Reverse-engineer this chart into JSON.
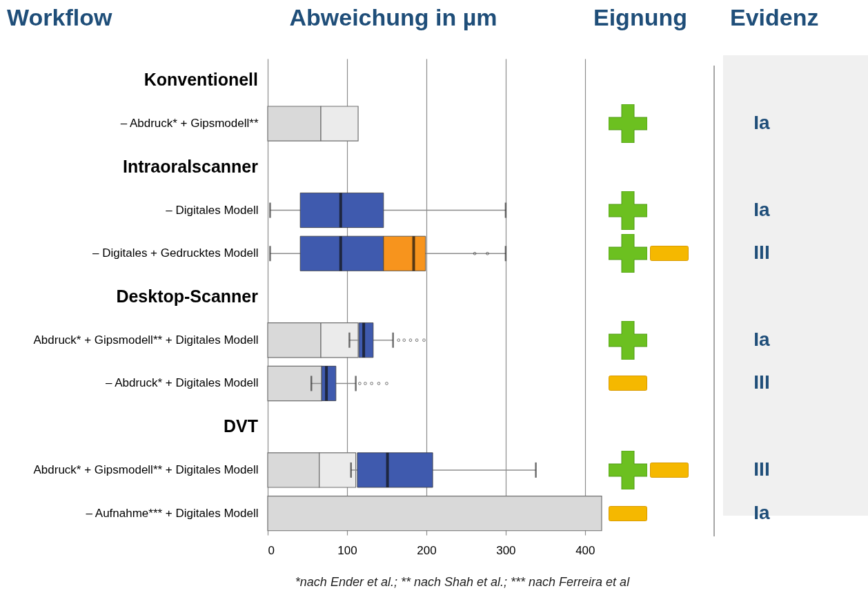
{
  "chart_data": {
    "type": "bar",
    "orientation": "horizontal",
    "stacked": true,
    "title": "Abweichung in µm",
    "categories": [
      null,
      "–   Abdruck* + Gipsmodell**",
      null,
      "– Digitales Modell",
      "– Digitales + Gedrucktes Modell",
      null,
      "Abdruck* + Gipsmodell** + Digitales Modell",
      "–   Abdruck* + Digitales Modell",
      null,
      "Abdruck* + Gipsmodell** + Digitales Modell",
      "–   Aufnahme*** + Digitales Modell"
    ],
    "xlim": [
      0,
      421
    ],
    "xticks": [
      0,
      100,
      200,
      300,
      400
    ],
    "grid": "x",
    "series": [
      {
        "type": "bar",
        "color": "#d9d9d9",
        "values": [
          null,
          67,
          null,
          null,
          null,
          null,
          67,
          68,
          null,
          65,
          421
        ]
      },
      {
        "type": "bar",
        "color": "#ebebeb",
        "values": [
          null,
          47,
          null,
          null,
          null,
          null,
          47,
          null,
          null,
          46,
          null
        ]
      },
      {
        "type": "box",
        "color": "#3f5aae",
        "boxes": [
          null,
          null,
          null,
          {
            "low": 3,
            "q1": 41,
            "median": 92,
            "q3": 146,
            "high": 300
          },
          {
            "low": 3,
            "q1": 41,
            "median": 92,
            "q3": 146,
            "high": 146
          },
          null,
          {
            "low": 103,
            "q1": 115,
            "median": 121,
            "q3": 133,
            "high": 158,
            "outliers": [
              165,
              172,
              180,
              188,
              197
            ]
          },
          {
            "low": 55,
            "q1": 68,
            "median": 74,
            "q3": 86,
            "high": 111,
            "outliers": [
              116,
              123,
              131,
              140,
              150
            ]
          },
          null,
          {
            "low": 105,
            "q1": 113,
            "median": 151,
            "q3": 208,
            "high": 338
          },
          null
        ]
      },
      {
        "type": "box",
        "color": "#f7941d",
        "boxes": [
          null,
          null,
          null,
          null,
          {
            "low": 146,
            "q1": 146,
            "median": 184,
            "q3": 199,
            "high": 300,
            "outliers": [
              261,
              277
            ]
          },
          null,
          null,
          null,
          null,
          null,
          null
        ]
      }
    ],
    "annotations": [
      "Workflow",
      "Eignung",
      "Evidenz",
      "Konventionell",
      "Intraoralscanner",
      "Desktop-Scanner",
      "DVT",
      "Ia",
      "Ia",
      "III",
      "Ia",
      "III",
      "III",
      "Ia",
      "*nach Ender et al.; ** nach Shah et al.; *** nach Ferreira et al"
    ]
  }
}
